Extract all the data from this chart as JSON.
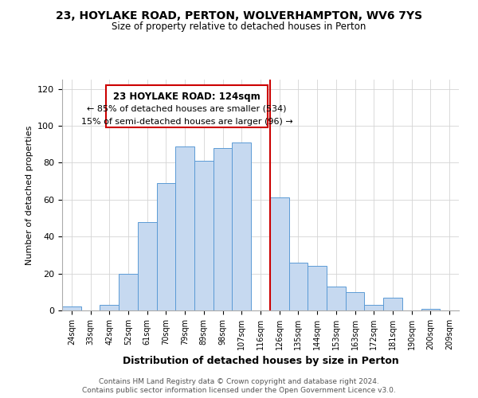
{
  "title": "23, HOYLAKE ROAD, PERTON, WOLVERHAMPTON, WV6 7YS",
  "subtitle": "Size of property relative to detached houses in Perton",
  "xlabel": "Distribution of detached houses by size in Perton",
  "ylabel": "Number of detached properties",
  "bin_labels": [
    "24sqm",
    "33sqm",
    "42sqm",
    "52sqm",
    "61sqm",
    "70sqm",
    "79sqm",
    "89sqm",
    "98sqm",
    "107sqm",
    "116sqm",
    "126sqm",
    "135sqm",
    "144sqm",
    "153sqm",
    "163sqm",
    "172sqm",
    "181sqm",
    "190sqm",
    "200sqm",
    "209sqm"
  ],
  "bar_heights": [
    2,
    0,
    3,
    20,
    48,
    69,
    89,
    81,
    88,
    91,
    0,
    61,
    26,
    24,
    13,
    10,
    3,
    7,
    0,
    1,
    0
  ],
  "bar_color": "#c6d9f0",
  "bar_edge_color": "#5b9bd5",
  "vline_color": "#cc0000",
  "annotation_title": "23 HOYLAKE ROAD: 124sqm",
  "annotation_line1": "← 85% of detached houses are smaller (534)",
  "annotation_line2": "15% of semi-detached houses are larger (96) →",
  "annotation_box_color": "#ffffff",
  "annotation_box_edge": "#cc0000",
  "footer1": "Contains HM Land Registry data © Crown copyright and database right 2024.",
  "footer2": "Contains public sector information licensed under the Open Government Licence v3.0.",
  "ylim": [
    0,
    125
  ],
  "figsize": [
    6.0,
    5.0
  ],
  "dpi": 100
}
